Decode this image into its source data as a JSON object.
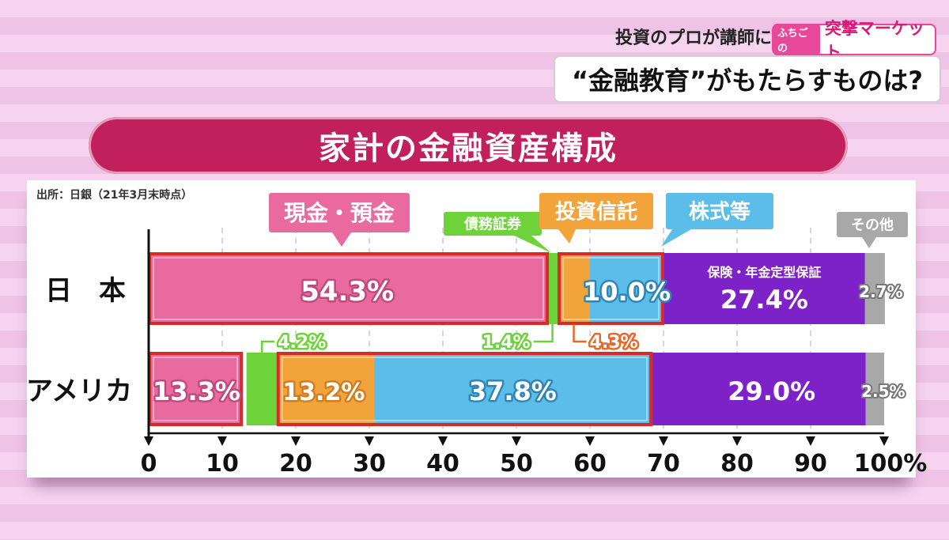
{
  "header": {
    "corner_text": "投資のプロが講師に",
    "logo_small": "ふちごの",
    "logo_main": "突撃マーケット",
    "subtitle": "“金融教育”がもたらすものは?"
  },
  "source": "出所：日銀（21年3月末時点）",
  "colors": {
    "cash": "#e86a9e",
    "bonds": "#6ed23a",
    "trusts": "#f2a43a",
    "stocks": "#5bbde8",
    "insurance": "#7d22c8",
    "other": "#a8a8a8",
    "highlight": "#d82a2a",
    "title_bg": "#c21f5d"
  },
  "chart_data": {
    "type": "bar",
    "title": "家計の金融資産構成",
    "orientation": "horizontal-stacked",
    "categories": [
      "日　本",
      "アメリカ"
    ],
    "series": [
      {
        "name": "現金・預金",
        "values": [
          54.3,
          13.3
        ]
      },
      {
        "name": "債務証券",
        "values": [
          1.4,
          4.2
        ]
      },
      {
        "name": "投資信託",
        "values": [
          4.3,
          13.2
        ]
      },
      {
        "name": "株式等",
        "values": [
          10.0,
          37.8
        ]
      },
      {
        "name": "保険・年金定型保証",
        "values": [
          27.4,
          29.0
        ]
      },
      {
        "name": "その他",
        "values": [
          2.7,
          2.5
        ]
      }
    ],
    "labels": {
      "jp": [
        "54.3%",
        "1.4%",
        "4.3%",
        "10.0%",
        "27.4%",
        "2.7%"
      ],
      "us": [
        "13.3%",
        "4.2%",
        "13.2%",
        "37.8%",
        "29.0%",
        "2.5%"
      ]
    },
    "x_ticks": [
      "0",
      "10",
      "20",
      "30",
      "40",
      "50",
      "60",
      "70",
      "80",
      "90",
      "100%"
    ],
    "xlim": [
      0,
      100
    ],
    "grid": true
  }
}
